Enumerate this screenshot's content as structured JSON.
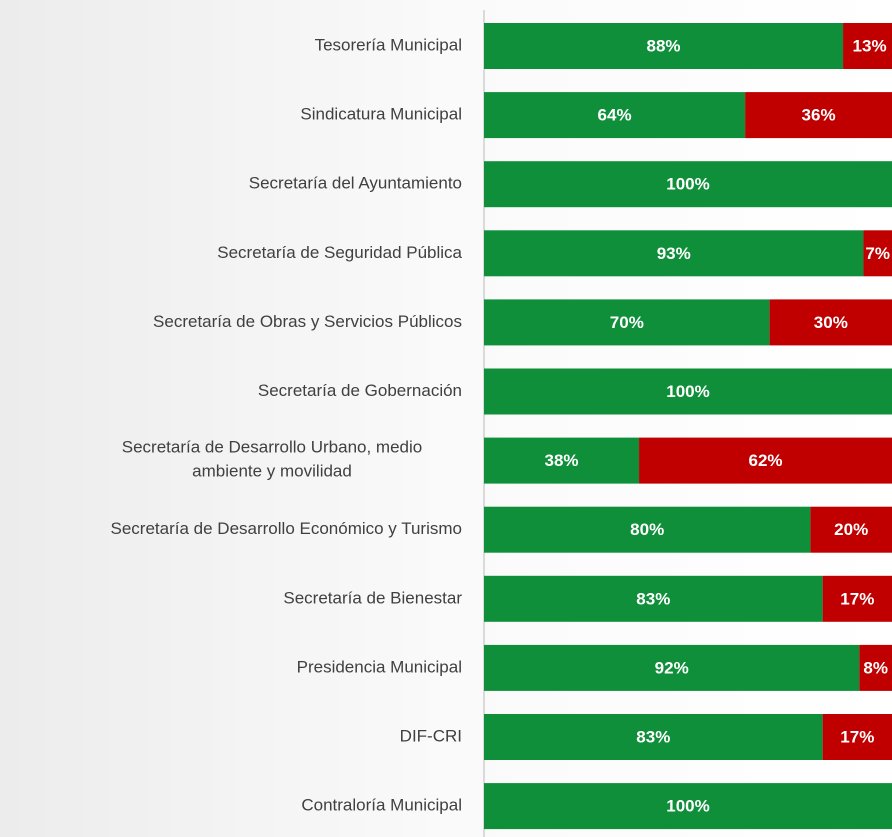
{
  "chart_data": {
    "type": "stacked-bar-horizontal",
    "categories": [
      "Tesorería Municipal",
      "Sindicatura Municipal",
      "Secretaría del Ayuntamiento",
      "Secretaría de Seguridad Pública",
      "Secretaría de Obras y Servicios Públicos",
      "Secretaría de Gobernación",
      "Secretaría de Desarrollo Urbano, medio\nambiente  y movilidad",
      "Secretaría de Desarrollo Económico y Turismo ",
      "Secretaría de Bienestar ",
      "Presidencia Municipal",
      "DIF-CRI",
      "Contraloría Municipal"
    ],
    "series": [
      {
        "color": "#0f8f3a",
        "values": [
          88,
          64,
          100,
          93,
          70,
          100,
          38,
          80,
          83,
          92,
          83,
          100
        ],
        "value_labels": [
          "88%",
          "64%",
          "100%",
          "93%",
          "70%",
          "100%",
          "38%",
          "80%",
          "83%",
          "92%",
          "83%",
          "100%"
        ]
      },
      {
        "color": "#c00000",
        "values": [
          13,
          36,
          null,
          7,
          30,
          null,
          62,
          20,
          17,
          8,
          17,
          null
        ],
        "value_labels": [
          "13%",
          "36%",
          null,
          "7%",
          "30%",
          null,
          "62%",
          "20%",
          "17%",
          "8%",
          "17%",
          null
        ]
      }
    ],
    "xlim": [
      0,
      100
    ]
  }
}
